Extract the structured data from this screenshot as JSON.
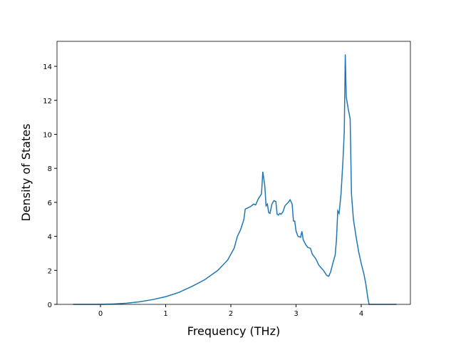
{
  "chart_data": {
    "type": "line",
    "xlabel": "Frequency (THz)",
    "ylabel": "Density of States",
    "x": [
      -0.42,
      0,
      0.2,
      0.4,
      0.6,
      0.8,
      1.0,
      1.2,
      1.4,
      1.6,
      1.8,
      1.95,
      2.05,
      2.1,
      2.15,
      2.2,
      2.22,
      2.3,
      2.35,
      2.38,
      2.42,
      2.47,
      2.49,
      2.52,
      2.54,
      2.56,
      2.58,
      2.6,
      2.63,
      2.66,
      2.69,
      2.71,
      2.73,
      2.75,
      2.77,
      2.8,
      2.83,
      2.88,
      2.91,
      2.94,
      2.96,
      2.98,
      3.0,
      3.03,
      3.07,
      3.09,
      3.11,
      3.15,
      3.18,
      3.22,
      3.25,
      3.3,
      3.35,
      3.42,
      3.47,
      3.5,
      3.53,
      3.57,
      3.6,
      3.62,
      3.64,
      3.66,
      3.69,
      3.72,
      3.74,
      3.755,
      3.77,
      3.8,
      3.83,
      3.85,
      3.88,
      3.92,
      3.96,
      4.0,
      4.04,
      4.07,
      4.1,
      4.12,
      4.3,
      4.54
    ],
    "series": [
      {
        "name": "DOS",
        "color": "#1f77b4",
        "values": [
          0,
          0,
          0.02,
          0.07,
          0.15,
          0.28,
          0.45,
          0.7,
          1.05,
          1.45,
          2.0,
          2.6,
          3.3,
          4.0,
          4.4,
          5.0,
          5.6,
          5.75,
          5.9,
          5.85,
          6.2,
          6.5,
          7.8,
          7.0,
          5.8,
          5.9,
          5.4,
          5.35,
          5.9,
          6.1,
          6.05,
          5.3,
          5.25,
          5.35,
          5.3,
          5.45,
          5.8,
          6.0,
          6.15,
          5.9,
          4.9,
          4.9,
          4.3,
          4.0,
          3.95,
          4.3,
          3.8,
          3.5,
          3.35,
          3.3,
          2.95,
          2.7,
          2.3,
          2.0,
          1.7,
          1.65,
          1.9,
          2.5,
          2.9,
          3.8,
          5.5,
          5.35,
          6.5,
          8.5,
          10.2,
          14.7,
          12.2,
          11.5,
          10.9,
          6.5,
          5.0,
          4.0,
          3.1,
          2.4,
          1.8,
          1.2,
          0.4,
          0,
          0,
          0
        ]
      }
    ],
    "xlim": [
      -0.667,
      4.754
    ],
    "ylim": [
      0,
      15.47
    ],
    "xticks": [
      0,
      1,
      2,
      3,
      4
    ],
    "yticks": [
      0,
      2,
      4,
      6,
      8,
      10,
      12,
      14
    ]
  }
}
